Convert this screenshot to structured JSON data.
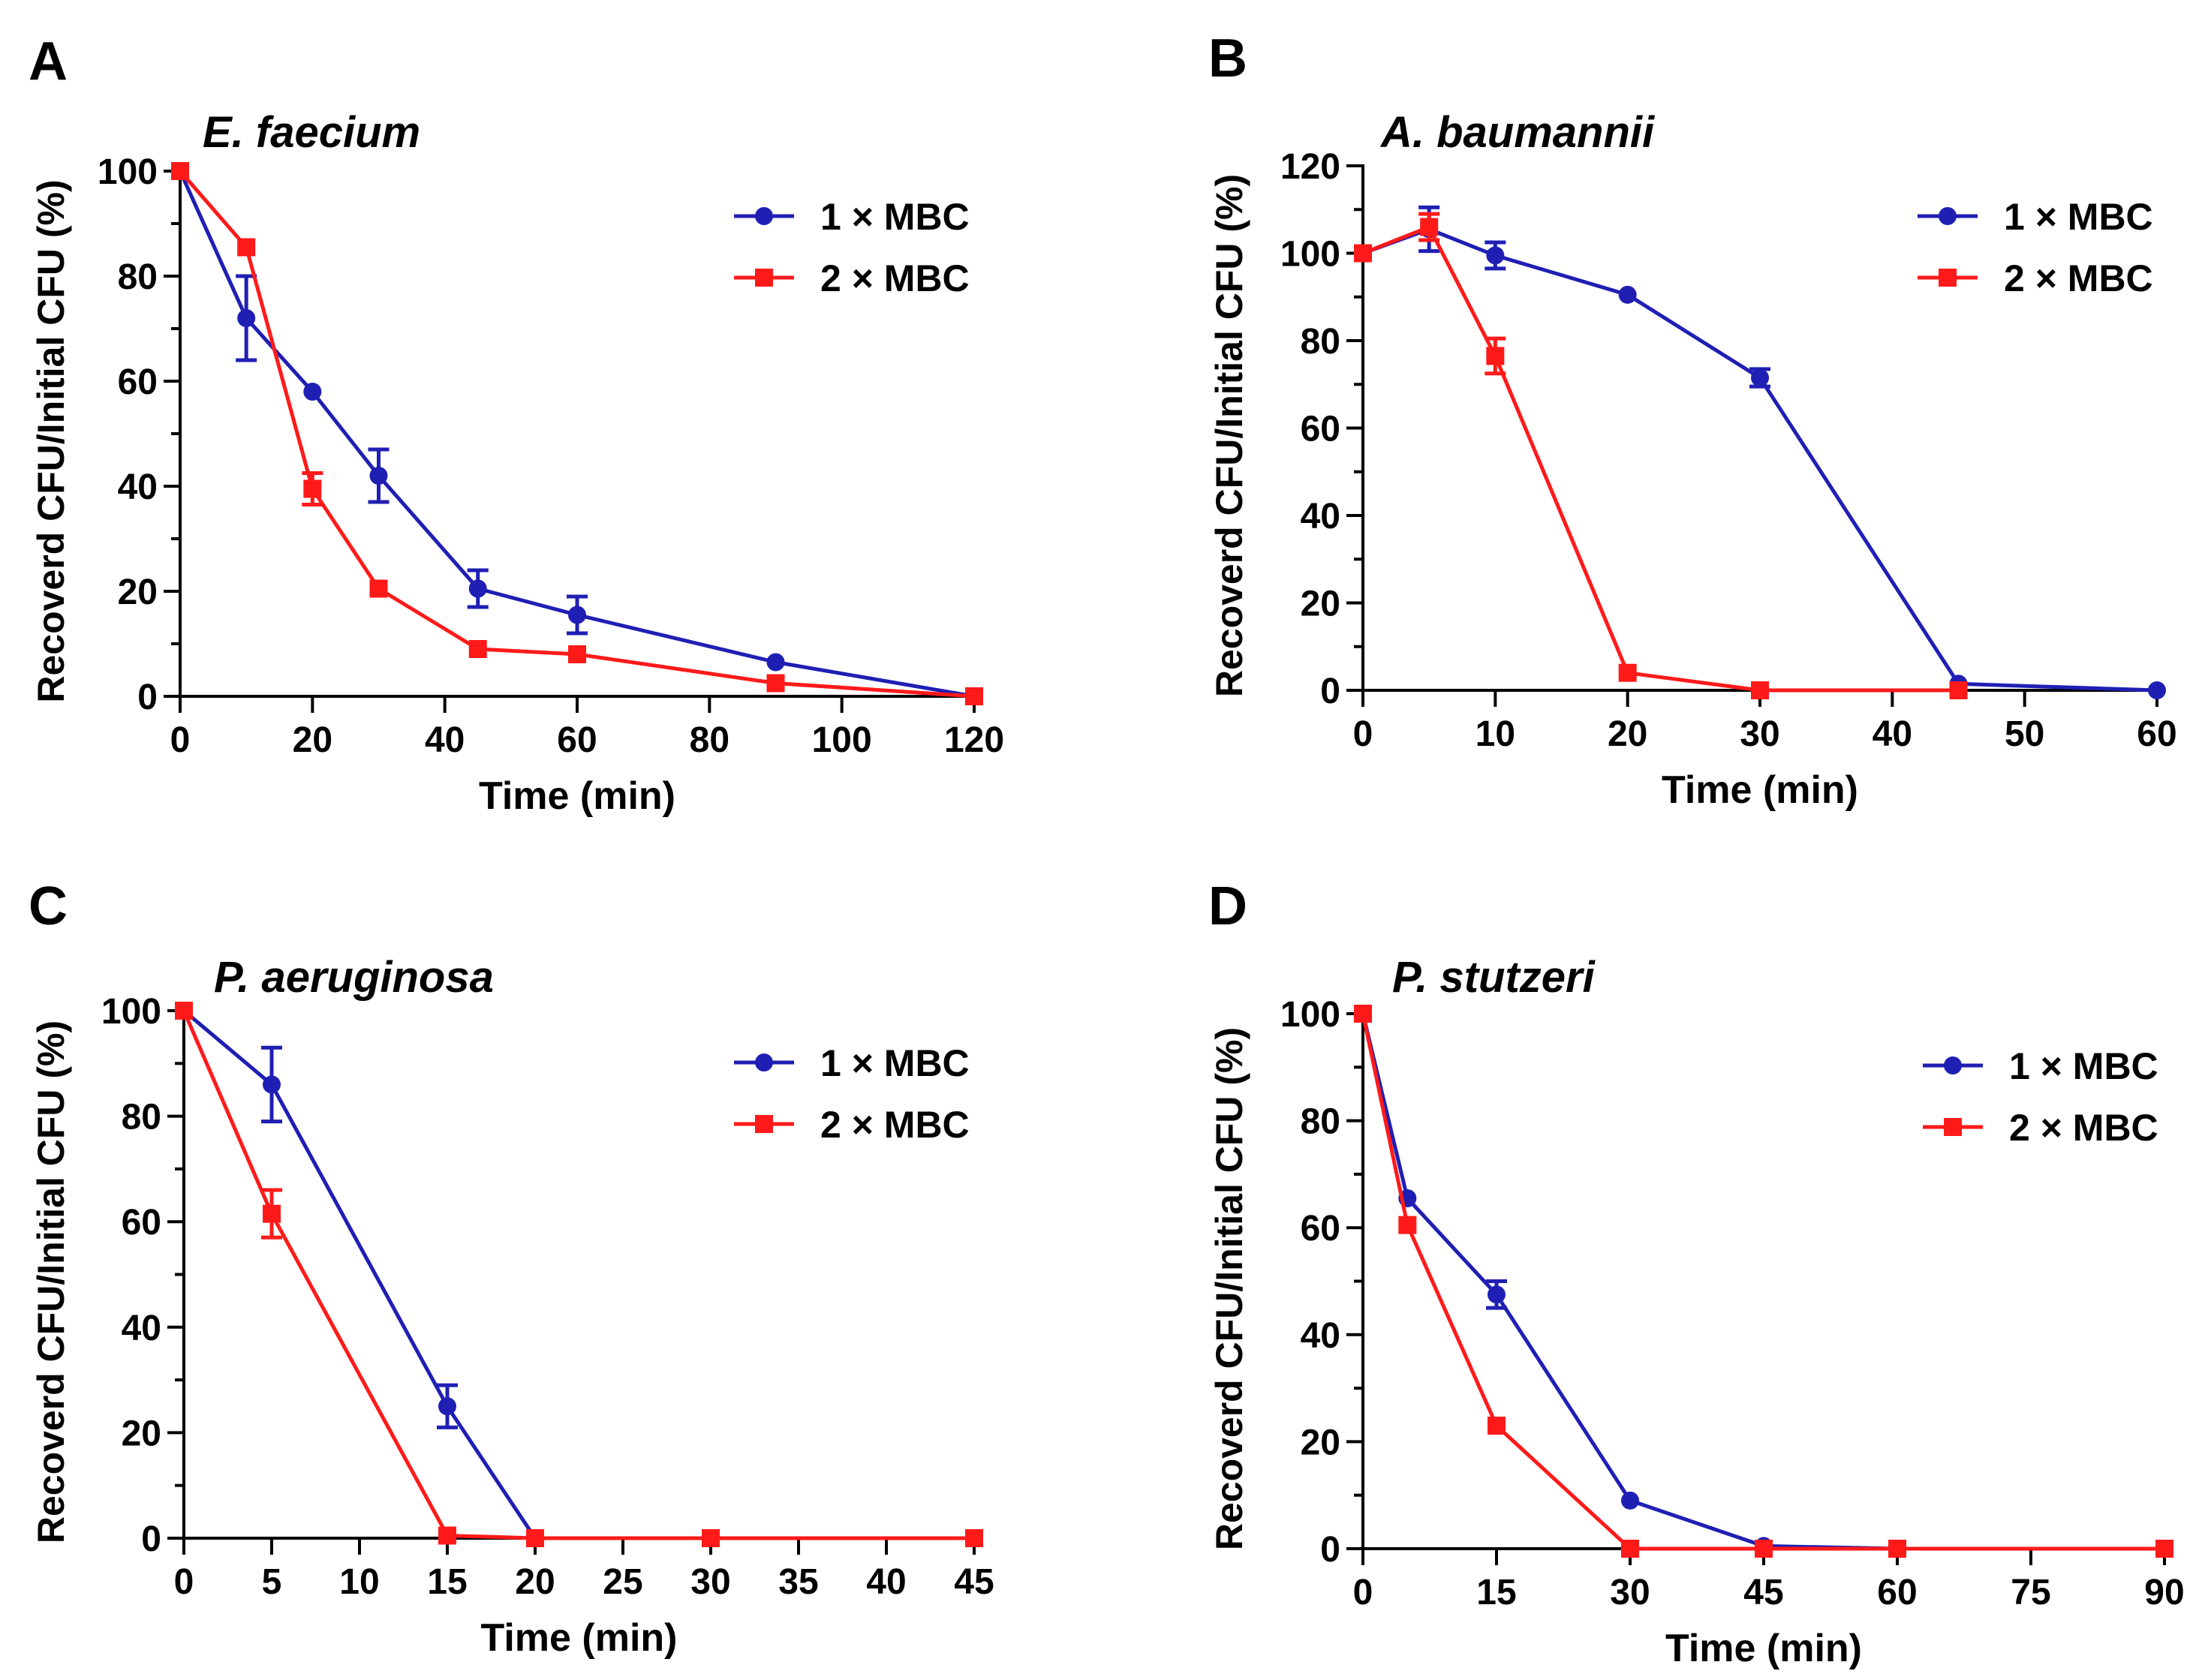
{
  "colors": {
    "series1": "#1f1fb4",
    "series2": "#ff1a1a",
    "axis": "#000000"
  },
  "chart_data": [
    {
      "type": "line",
      "panel_label": "A",
      "title": "E. faecium",
      "xlabel": "Time (min)",
      "ylabel": "Recoverd CFU/Initial CFU (%)",
      "xlim": [
        0,
        120
      ],
      "ylim": [
        0,
        100
      ],
      "xticks": [
        0,
        20,
        40,
        60,
        80,
        100,
        120
      ],
      "yticks": [
        0,
        20,
        40,
        60,
        80,
        100
      ],
      "legend": "top-right",
      "series": [
        {
          "name": "1 × MBC",
          "marker": "circle",
          "x": [
            0,
            10,
            20,
            30,
            45,
            60,
            90,
            120
          ],
          "y": [
            100,
            72,
            58,
            42,
            20.5,
            15.5,
            6.5,
            0
          ],
          "err": [
            0,
            8,
            0,
            5,
            3.5,
            3.5,
            0,
            0
          ]
        },
        {
          "name": "2 × MBC",
          "marker": "square",
          "x": [
            0,
            10,
            20,
            30,
            45,
            60,
            90,
            120
          ],
          "y": [
            100,
            85.5,
            39.5,
            20.5,
            9,
            8,
            2.5,
            0
          ],
          "err": [
            0,
            0,
            3,
            0,
            0,
            0,
            0,
            0
          ]
        }
      ]
    },
    {
      "type": "line",
      "panel_label": "B",
      "title": "A. baumannii",
      "xlabel": "Time (min)",
      "ylabel": "Recoverd CFU/Initial CFU (%)",
      "xlim": [
        0,
        60
      ],
      "ylim": [
        0,
        120
      ],
      "xticks": [
        0,
        10,
        20,
        30,
        40,
        50,
        60
      ],
      "yticks": [
        0,
        20,
        40,
        60,
        80,
        100,
        120
      ],
      "legend": "top-right",
      "series": [
        {
          "name": "1 × MBC",
          "marker": "circle",
          "x": [
            0,
            5,
            10,
            20,
            30,
            45,
            60
          ],
          "y": [
            100,
            105.5,
            99.5,
            90.5,
            71.5,
            1.5,
            0
          ],
          "err": [
            0,
            5,
            3,
            0,
            2,
            0,
            0
          ]
        },
        {
          "name": "2 × MBC",
          "marker": "square",
          "x": [
            0,
            5,
            10,
            20,
            30,
            45
          ],
          "y": [
            100,
            106,
            76.5,
            4,
            0,
            0
          ],
          "err": [
            0,
            3,
            4,
            0,
            0,
            0
          ]
        }
      ]
    },
    {
      "type": "line",
      "panel_label": "C",
      "title": "P. aeruginosa",
      "xlabel": "Time (min)",
      "ylabel": "Recoverd CFU/Initial CFU (%)",
      "xlim": [
        0,
        45
      ],
      "ylim": [
        0,
        100
      ],
      "xticks": [
        0,
        5,
        10,
        15,
        20,
        25,
        30,
        35,
        40,
        45
      ],
      "yticks": [
        0,
        20,
        40,
        60,
        80,
        100
      ],
      "legend": "top-right",
      "series": [
        {
          "name": "1 × MBC",
          "marker": "circle",
          "x": [
            0,
            5,
            15,
            20,
            30,
            45
          ],
          "y": [
            100,
            86,
            25,
            0,
            0,
            0
          ],
          "err": [
            0,
            7,
            4,
            0,
            0,
            0
          ]
        },
        {
          "name": "2 × MBC",
          "marker": "square",
          "x": [
            0,
            5,
            15,
            20,
            30,
            45
          ],
          "y": [
            100,
            61.5,
            0.5,
            0,
            0,
            0
          ],
          "err": [
            0,
            4.5,
            0,
            0,
            0,
            0
          ]
        }
      ]
    },
    {
      "type": "line",
      "panel_label": "D",
      "title": "P. stutzeri",
      "xlabel": "Time (min)",
      "ylabel": "Recoverd CFU/Initial CFU (%)",
      "xlim": [
        0,
        90
      ],
      "ylim": [
        0,
        100
      ],
      "xticks": [
        0,
        15,
        30,
        45,
        60,
        75,
        90
      ],
      "yticks": [
        0,
        20,
        40,
        60,
        80,
        100
      ],
      "legend": "top-right",
      "series": [
        {
          "name": "1 × MBC",
          "marker": "circle",
          "x": [
            0,
            5,
            15,
            30,
            45,
            60,
            90
          ],
          "y": [
            100,
            65.5,
            47.5,
            9,
            0.5,
            0,
            0
          ],
          "err": [
            0,
            0,
            2.5,
            0,
            0,
            0,
            0
          ]
        },
        {
          "name": "2 × MBC",
          "marker": "square",
          "x": [
            0,
            5,
            15,
            30,
            45,
            60,
            90
          ],
          "y": [
            100,
            60.5,
            23,
            0,
            0,
            0,
            0
          ],
          "err": [
            0,
            0,
            0,
            0,
            0,
            0,
            0
          ]
        }
      ]
    }
  ]
}
